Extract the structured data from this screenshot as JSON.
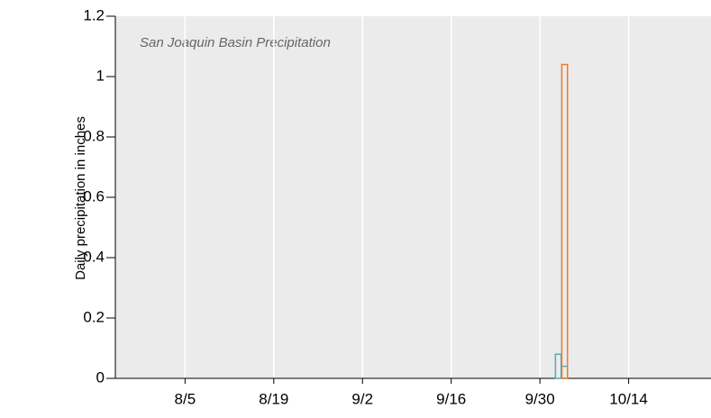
{
  "chart_data": {
    "type": "bar",
    "title": "San Joaquin Basin Precipitation",
    "y_label": "Daily precipitation in inches",
    "x": [
      "10/2",
      "10/3"
    ],
    "series": [
      {
        "color": "#4bacc6",
        "values": [
          0.08,
          0.04
        ]
      },
      {
        "color": "#f07a2a",
        "values": [
          null,
          1.04
        ]
      }
    ],
    "xlim": [
      "7/25",
      "10/27"
    ],
    "xticks": [
      "8/5",
      "8/19",
      "9/2",
      "9/16",
      "9/30",
      "10/14"
    ],
    "ylim": [
      0,
      1.2
    ],
    "yticks": [
      0,
      0.2,
      0.4,
      0.6,
      0.8,
      1,
      1.2
    ],
    "grid": true
  }
}
